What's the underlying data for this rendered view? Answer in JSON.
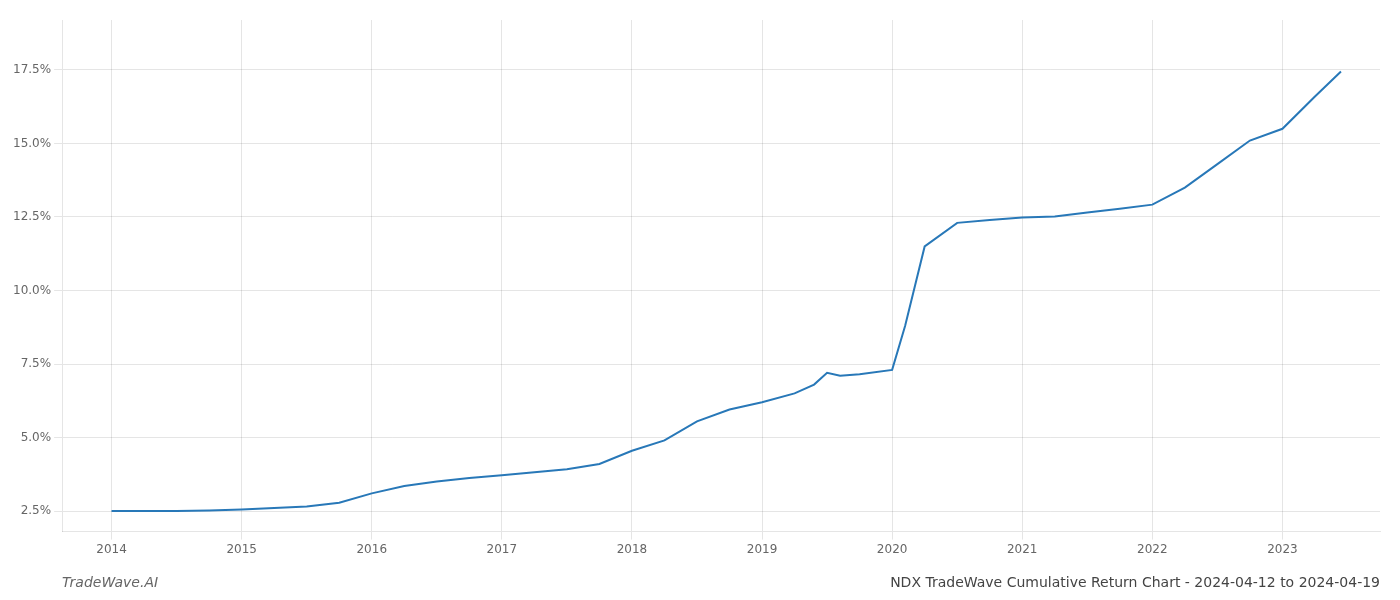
{
  "chart_data": {
    "type": "line",
    "title": "NDX TradeWave Cumulative Return Chart - 2024-04-12 to 2024-04-19",
    "annotations": [
      "TradeWave.AI"
    ],
    "x": [
      2014.0,
      2014.25,
      2014.5,
      2014.75,
      2015.0,
      2015.25,
      2015.5,
      2015.75,
      2016.0,
      2016.25,
      2016.5,
      2016.75,
      2017.0,
      2017.25,
      2017.5,
      2017.75,
      2018.0,
      2018.25,
      2018.5,
      2018.75,
      2019.0,
      2019.25,
      2019.4,
      2019.5,
      2019.6,
      2019.75,
      2020.0,
      2020.1,
      2020.25,
      2020.5,
      2020.75,
      2021.0,
      2021.25,
      2021.5,
      2021.75,
      2022.0,
      2022.25,
      2022.5,
      2022.75,
      2023.0,
      2023.25,
      2023.45
    ],
    "values": [
      2.5,
      2.5,
      2.5,
      2.52,
      2.55,
      2.6,
      2.65,
      2.78,
      3.1,
      3.35,
      3.5,
      3.62,
      3.72,
      3.82,
      3.92,
      4.1,
      4.55,
      4.9,
      5.55,
      5.95,
      6.2,
      6.5,
      6.8,
      7.2,
      7.1,
      7.15,
      7.3,
      8.8,
      11.5,
      12.3,
      12.4,
      12.48,
      12.52,
      12.65,
      12.78,
      12.92,
      13.5,
      14.3,
      15.1,
      15.5,
      16.6,
      17.45
    ],
    "color": "#2878b8",
    "xlim": [
      2013.62,
      2023.75
    ],
    "ylim": [
      1.8,
      19.2
    ],
    "xticks": [
      2014,
      2015,
      2016,
      2017,
      2018,
      2019,
      2020,
      2021,
      2022,
      2023
    ],
    "yticks": [
      {
        "value": 2.5,
        "label": "2.5%"
      },
      {
        "value": 5.0,
        "label": "5.0%"
      },
      {
        "value": 7.5,
        "label": "7.5%"
      },
      {
        "value": 10.0,
        "label": "10.0%"
      },
      {
        "value": 12.5,
        "label": "12.5%"
      },
      {
        "value": 15.0,
        "label": "15.0%"
      },
      {
        "value": 17.5,
        "label": "17.5%"
      }
    ],
    "grid": true
  }
}
